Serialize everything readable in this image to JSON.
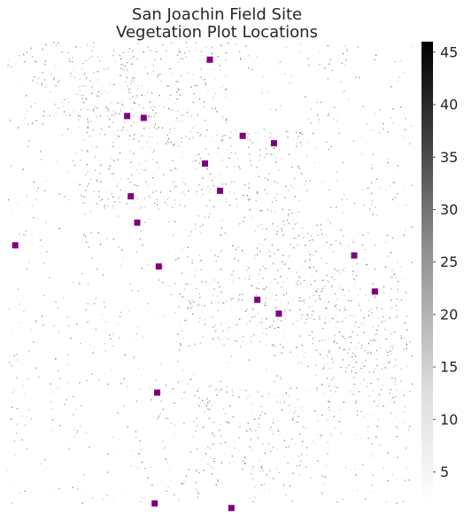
{
  "chart_data": {
    "type": "heatmap",
    "title": [
      "San Joachin Field Site",
      "Vegetation Plot Locations"
    ],
    "colorbar": {
      "cmap": "greys",
      "vmin": 2,
      "vmax": 46,
      "ticks": [
        5,
        10,
        15,
        20,
        25,
        30,
        35,
        40,
        45
      ],
      "tick_labels": [
        "5",
        "10",
        "15",
        "20",
        "25",
        "30",
        "35",
        "40",
        "45"
      ]
    },
    "extent": {
      "x": [
        0,
        1
      ],
      "y": [
        0,
        1
      ]
    },
    "marker_style": {
      "shape": "square",
      "color": "#800080"
    },
    "plot_locations": [
      {
        "x": 0.5,
        "y": 0.961
      },
      {
        "x": 0.296,
        "y": 0.839
      },
      {
        "x": 0.337,
        "y": 0.835
      },
      {
        "x": 0.581,
        "y": 0.796
      },
      {
        "x": 0.658,
        "y": 0.78
      },
      {
        "x": 0.488,
        "y": 0.736
      },
      {
        "x": 0.525,
        "y": 0.677
      },
      {
        "x": 0.305,
        "y": 0.665
      },
      {
        "x": 0.321,
        "y": 0.608
      },
      {
        "x": 0.02,
        "y": 0.559
      },
      {
        "x": 0.856,
        "y": 0.537
      },
      {
        "x": 0.374,
        "y": 0.513
      },
      {
        "x": 0.907,
        "y": 0.459
      },
      {
        "x": 0.617,
        "y": 0.441
      },
      {
        "x": 0.67,
        "y": 0.411
      },
      {
        "x": 0.37,
        "y": 0.24
      },
      {
        "x": 0.364,
        "y": 0.0
      },
      {
        "x": 0.553,
        "y": -0.01
      }
    ]
  }
}
